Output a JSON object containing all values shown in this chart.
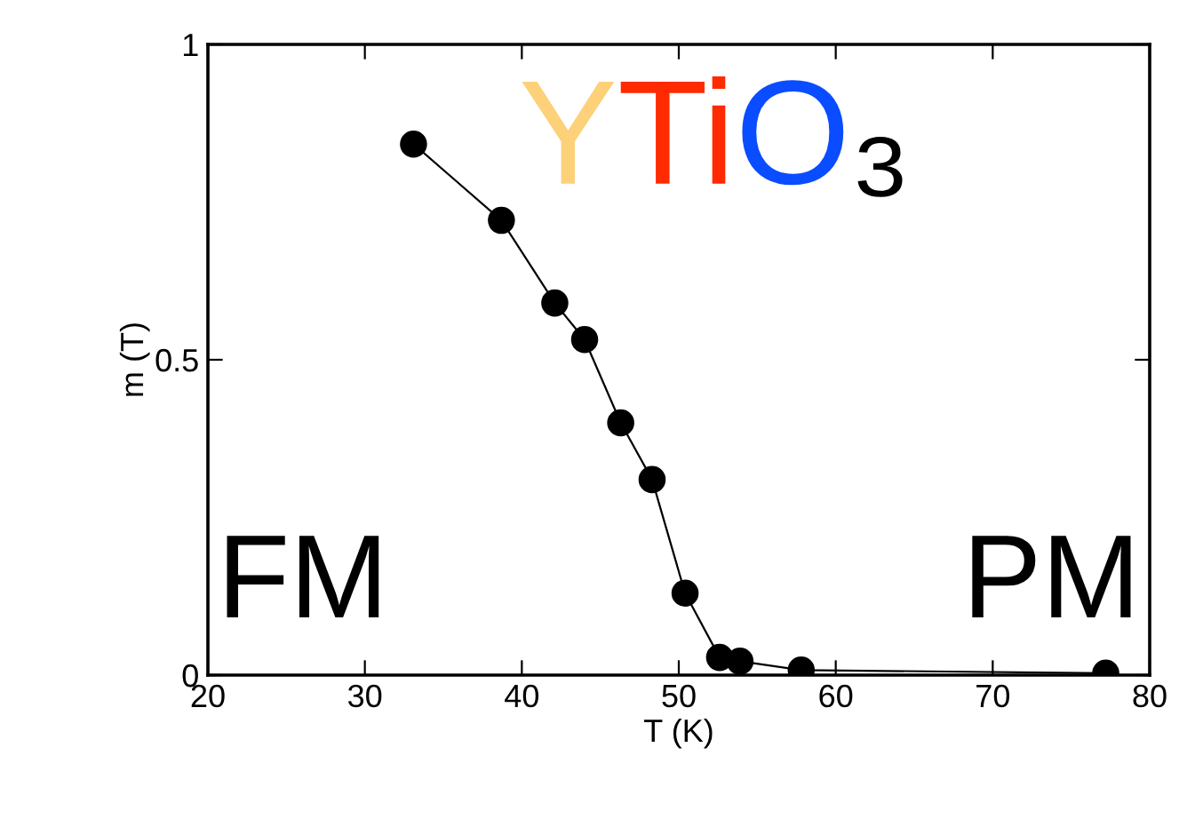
{
  "chart_data": {
    "type": "line",
    "xlabel": "T (K)",
    "ylabel": "m (T)",
    "x": [
      33.1,
      38.7,
      42.1,
      44.0,
      46.3,
      48.3,
      50.4,
      52.6,
      53.9,
      57.8,
      77.2
    ],
    "series": [
      {
        "color": "#000000",
        "values": [
          0.842,
          0.721,
          0.59,
          0.532,
          0.4,
          0.31,
          0.13,
          0.028,
          0.022,
          0.008,
          0.003
        ]
      }
    ],
    "xlim": [
      20,
      80
    ],
    "ylim": [
      0,
      1
    ],
    "xticks": [
      20,
      30,
      40,
      50,
      60,
      70,
      80
    ],
    "yticks": [
      0,
      0.5,
      1
    ],
    "marker": "circle",
    "line_style": "solid",
    "grid": false,
    "legend": false,
    "annotations": [
      "YTiO₃",
      "FM",
      "PM"
    ]
  }
}
